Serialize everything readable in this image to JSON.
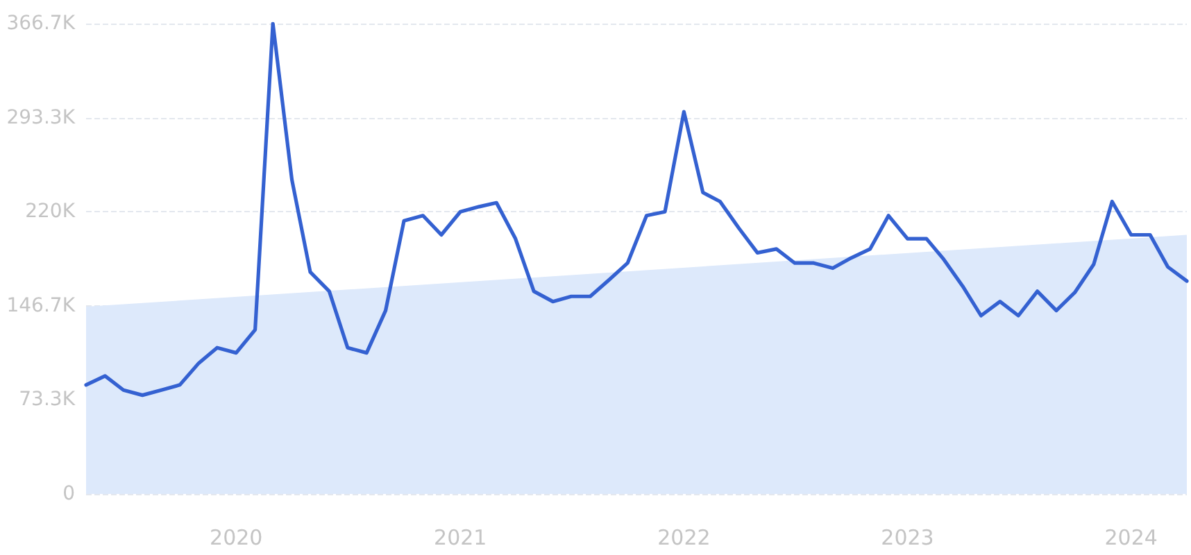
{
  "chart_data": {
    "type": "line",
    "x": [
      "2019-05",
      "2019-06",
      "2019-07",
      "2019-08",
      "2019-09",
      "2019-10",
      "2019-11",
      "2019-12",
      "2020-01",
      "2020-02",
      "2020-03",
      "2020-04",
      "2020-05",
      "2020-06",
      "2020-07",
      "2020-08",
      "2020-09",
      "2020-10",
      "2020-11",
      "2020-12",
      "2021-01",
      "2021-02",
      "2021-03",
      "2021-04",
      "2021-05",
      "2021-06",
      "2021-07",
      "2021-08",
      "2021-09",
      "2021-10",
      "2021-11",
      "2021-12",
      "2022-01",
      "2022-02",
      "2022-03",
      "2022-04",
      "2022-05",
      "2022-06",
      "2022-07",
      "2022-08",
      "2022-09",
      "2022-10",
      "2022-11",
      "2022-12",
      "2023-01",
      "2023-02",
      "2023-03",
      "2023-04",
      "2023-05",
      "2023-06",
      "2023-07",
      "2023-08",
      "2023-09",
      "2023-10",
      "2023-11",
      "2023-12",
      "2024-01",
      "2024-02",
      "2024-03",
      "2024-04"
    ],
    "series": [
      {
        "type": "area",
        "color": "#dde9fb",
        "x": [
          "2019-05",
          "2024-04"
        ],
        "values": [
          146000,
          202000
        ]
      },
      {
        "color": "#3461d1",
        "values": [
          85000,
          92000,
          81000,
          77000,
          81000,
          85000,
          102000,
          114000,
          110000,
          128000,
          366700,
          245000,
          173000,
          158000,
          114000,
          110000,
          143000,
          213000,
          217000,
          202000,
          220000,
          224000,
          227000,
          199000,
          158000,
          150000,
          154000,
          154000,
          167000,
          180000,
          217000,
          220000,
          298000,
          235000,
          228000,
          207000,
          188000,
          191000,
          180000,
          180000,
          176000,
          184000,
          191000,
          217000,
          199000,
          199000,
          183000,
          162000,
          139000,
          150000,
          139000,
          158000,
          143000,
          157000,
          179000,
          228000,
          202000,
          202000,
          177000,
          166000
        ]
      }
    ],
    "xlim": [
      "2019-05",
      "2024-04"
    ],
    "xticks": [
      "2020",
      "2021",
      "2022",
      "2023",
      "2024"
    ],
    "ylim": [
      0,
      366700
    ],
    "yticks": [
      0,
      {
        "value": 73300,
        "label": "73.3K"
      },
      {
        "value": 146700,
        "label": "146.7K"
      },
      {
        "value": 220000,
        "label": "220K"
      },
      {
        "value": 293300,
        "label": "293.3K"
      },
      {
        "value": 366700,
        "label": "366.7K"
      }
    ],
    "grid": "y",
    "marker": "none",
    "line_style": "solid"
  }
}
